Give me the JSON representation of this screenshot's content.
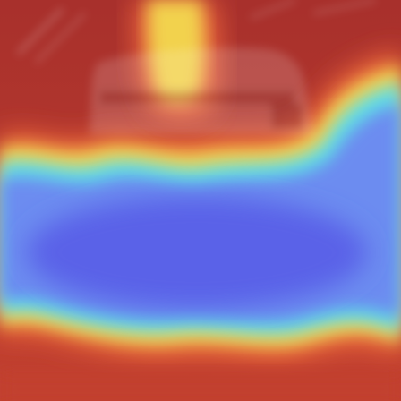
{
  "image": {
    "kind": "attention-heatmap-overlay",
    "colormap": "jet",
    "colors": {
      "hot": "#b8352e",
      "warm": "#e8633a",
      "yellow": "#f2d24e",
      "cyan": "#5ee0e6",
      "cool": "#6c8cf0",
      "cold": "#5a62e8"
    }
  }
}
